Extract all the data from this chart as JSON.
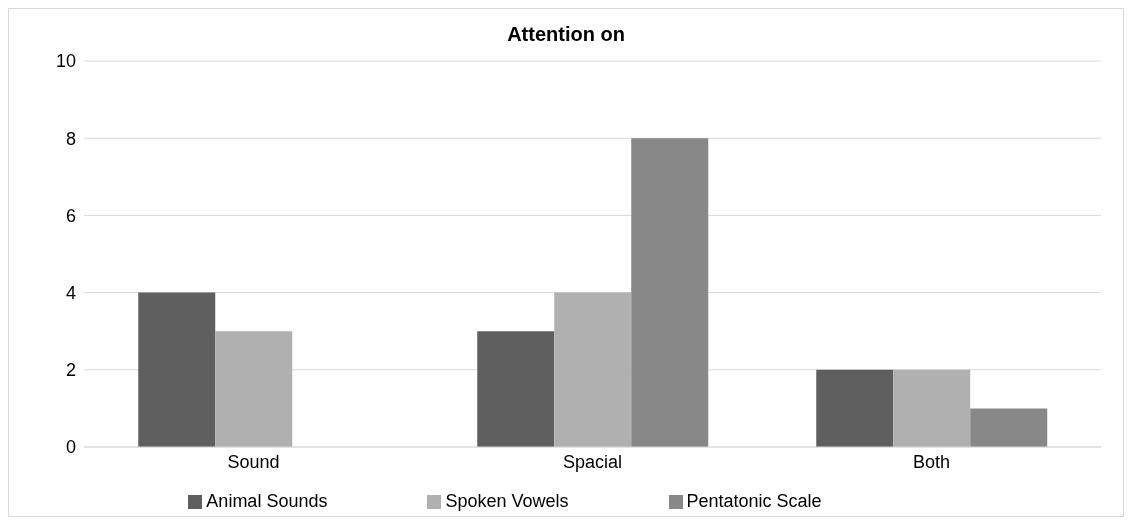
{
  "chart_data": {
    "type": "bar",
    "title": "Attention on",
    "categories": [
      "Sound",
      "Spacial",
      "Both"
    ],
    "series": [
      {
        "name": "Animal Sounds",
        "color": "#5f5f5f",
        "values": [
          4,
          3,
          2
        ]
      },
      {
        "name": "Spoken Vowels",
        "color": "#b0b0b0",
        "values": [
          3,
          4,
          2
        ]
      },
      {
        "name": "Pentatonic Scale",
        "color": "#888888",
        "values": [
          0,
          8,
          1
        ]
      }
    ],
    "ylim": [
      0,
      10
    ],
    "yticks": [
      0,
      2,
      4,
      6,
      8,
      10
    ],
    "grid": "y",
    "legend": "bottom"
  }
}
